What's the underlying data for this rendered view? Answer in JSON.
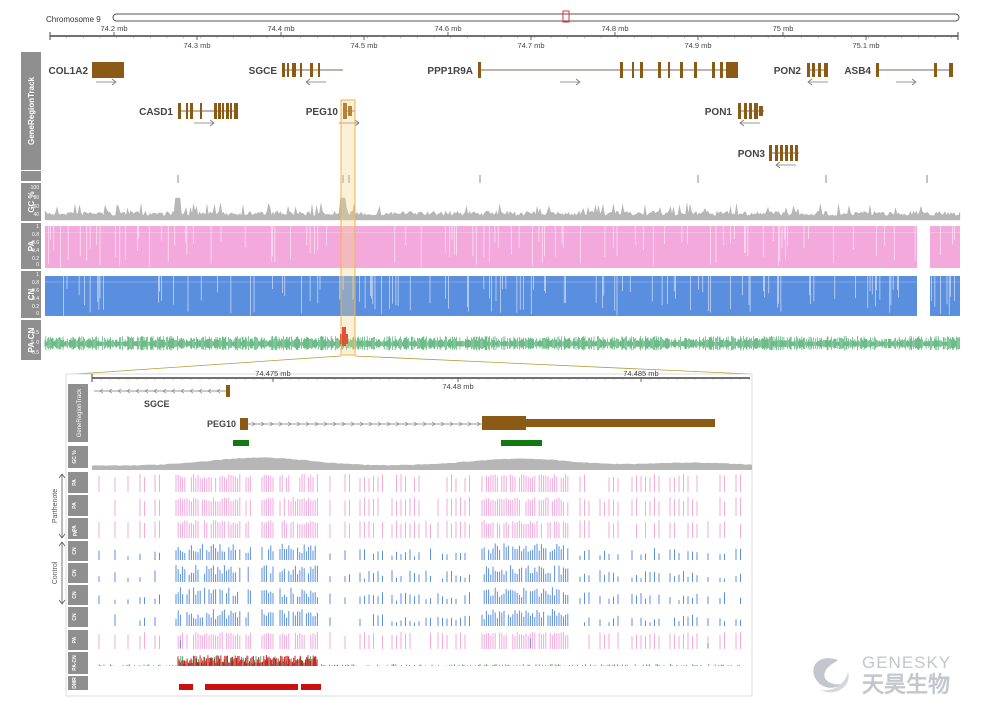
{
  "chromosome": {
    "label": "Chromosome 9"
  },
  "top_axis": {
    "upper_ticks": [
      "74.2 mb",
      "74.4 mb",
      "74.6 mb",
      "74.8 mb",
      "75 mb"
    ],
    "lower_ticks": [
      "74.3 mb",
      "74.5 mb",
      "74.7 mb",
      "74.9 mb",
      "75.1 mb"
    ]
  },
  "top_panel": {
    "gene_track_label": "GeneRegionTrack",
    "track_labels": [
      "GC %",
      "PA",
      "CN",
      "PA-CN"
    ],
    "gc_ticks": [
      "100",
      "80",
      "60",
      "40"
    ],
    "frac_ticks": [
      "1",
      "0.8",
      "0.6",
      "0.4",
      "0.2",
      "0"
    ],
    "pacn_ticks": [
      "0.5",
      "0",
      "-0.5"
    ],
    "genes": [
      {
        "name": "COL1A2",
        "strand": "+"
      },
      {
        "name": "SGCE",
        "strand": "-"
      },
      {
        "name": "PPP1R9A",
        "strand": "+"
      },
      {
        "name": "PON2",
        "strand": "-"
      },
      {
        "name": "ASB4",
        "strand": "+"
      },
      {
        "name": "CASD1",
        "strand": "+"
      },
      {
        "name": "PEG10",
        "strand": "+"
      },
      {
        "name": "PON1",
        "strand": "-"
      },
      {
        "name": "PON3",
        "strand": "-"
      }
    ]
  },
  "zoom_panel": {
    "axis_ticks": [
      "74.475 mb",
      "74.48 mb",
      "74.485 mb"
    ],
    "gene_track_label": "GeneRegionTrack",
    "genes": [
      {
        "name": "SGCE"
      },
      {
        "name": "PEG10"
      }
    ],
    "group_labels": [
      "Parthenote",
      "Control"
    ],
    "track_labels": [
      "GC %",
      "PA",
      "PA",
      "PA",
      "CN",
      "CN",
      "CN",
      "CN",
      "PA",
      "CN",
      "PA-CN",
      "DMR"
    ]
  },
  "colors": {
    "gene": "#8b5a14",
    "pa": "#f3a9dc",
    "cn": "#5a8fe0",
    "pacn": "#2e9e56",
    "dmr": "#cc0f0f",
    "gc": "#b6b6b6",
    "highlight": "#f6b24a",
    "cpg": "#127a12",
    "sidebar": "#8f8f8f"
  },
  "logo": {
    "english": "GENESKY",
    "chinese": "天昊生物"
  }
}
